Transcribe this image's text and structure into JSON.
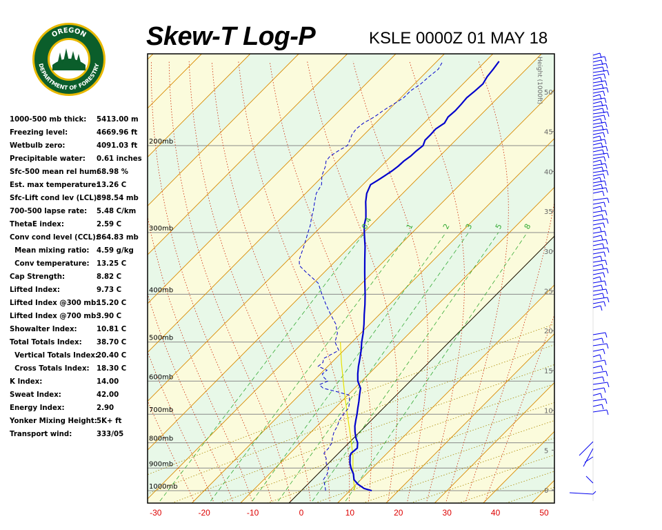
{
  "header": {
    "title": "Skew-T Log-P",
    "station": "KSLE 0000Z 01 MAY 18",
    "logo_text_top": "OREGON",
    "logo_text_bottom": "DEPARTMENT OF FORESTRY"
  },
  "stats": [
    {
      "label": "1000-500 mb thick:",
      "value": "5413.00 m"
    },
    {
      "label": "Freezing level:",
      "value": "4669.96 ft"
    },
    {
      "label": "Wetbulb zero:",
      "value": "4091.03 ft"
    },
    {
      "label": "Precipitable water:",
      "value": "0.61 inches"
    },
    {
      "label": "Sfc-500 mean rel hum:",
      "value": "68.98 %"
    },
    {
      "label": "Est. max temperature:",
      "value": "13.26 C"
    },
    {
      "label": "Sfc-Lift cond lev (LCL):",
      "value": "898.54 mb"
    },
    {
      "label": "700-500 lapse rate:",
      "value": "5.48 C/km"
    },
    {
      "label": "ThetaE index:",
      "value": "2.59 C"
    },
    {
      "label": "Conv cond level (CCL):",
      "value": "864.83 mb"
    },
    {
      "label": "  Mean mixing ratio:",
      "value": "4.59 g/kg"
    },
    {
      "label": "  Conv temperature:",
      "value": "13.25 C"
    },
    {
      "label": "Cap Strength:",
      "value": "8.82 C"
    },
    {
      "label": "Lifted Index:",
      "value": "9.73 C"
    },
    {
      "label": "Lifted Index @300 mb:",
      "value": "15.20 C"
    },
    {
      "label": "Lifted Index @700 mb:",
      "value": "3.90 C"
    },
    {
      "label": "Showalter Index:",
      "value": "10.81 C"
    },
    {
      "label": "Total Totals Index:",
      "value": "38.70 C"
    },
    {
      "label": "  Vertical Totals Index:",
      "value": "20.40 C"
    },
    {
      "label": "  Cross Totals Index:",
      "value": "18.30 C"
    },
    {
      "label": "K Index:",
      "value": "14.00"
    },
    {
      "label": "Sweat Index:",
      "value": "42.00"
    },
    {
      "label": "Energy Index:",
      "value": "2.90"
    },
    {
      "label": "Yonker Mixing Height:",
      "value": "5K+ ft"
    },
    {
      "label": "Transport wind:",
      "value": "333/05"
    }
  ],
  "chart_data": {
    "type": "skew-t",
    "xlabel": "",
    "ylabel": "",
    "x_ticks": [
      -30,
      -20,
      -10,
      0,
      10,
      20,
      30,
      40,
      50
    ],
    "pressure_levels": [
      {
        "p": 200,
        "label": "200mb"
      },
      {
        "p": 300,
        "label": "300mb"
      },
      {
        "p": 400,
        "label": "400mb"
      },
      {
        "p": 500,
        "label": "500mb"
      },
      {
        "p": 600,
        "label": "600mb"
      },
      {
        "p": 700,
        "label": "700mb"
      },
      {
        "p": 800,
        "label": "800mb"
      },
      {
        "p": 900,
        "label": "900mb"
      },
      {
        "p": 1000,
        "label": "1000mb"
      }
    ],
    "height_axis": {
      "title": "Height (1000ft)",
      "ticks": [
        0,
        5,
        10,
        15,
        20,
        25,
        30,
        35,
        40,
        45,
        50
      ]
    },
    "mixing_ratio_labels": [
      "0.4",
      "1",
      "2",
      "3",
      "5",
      "8"
    ],
    "mixing_ratios": [
      0.4,
      1,
      2,
      3,
      5,
      8
    ],
    "temperature_profile": [
      [
        1000,
        14.5
      ],
      [
        990,
        12.5
      ],
      [
        970,
        10.3
      ],
      [
        950,
        8.6
      ],
      [
        925,
        7.3
      ],
      [
        900,
        5.6
      ],
      [
        880,
        4.4
      ],
      [
        860,
        3.4
      ],
      [
        850,
        2.9
      ],
      [
        840,
        2.6
      ],
      [
        830,
        2.7
      ],
      [
        820,
        2.8
      ],
      [
        800,
        1.8
      ],
      [
        780,
        0.3
      ],
      [
        760,
        -1.0
      ],
      [
        740,
        -2.2
      ],
      [
        720,
        -3.2
      ],
      [
        700,
        -4.2
      ],
      [
        680,
        -5.3
      ],
      [
        660,
        -6.4
      ],
      [
        640,
        -7.6
      ],
      [
        620,
        -8.8
      ],
      [
        610,
        -9.8
      ],
      [
        600,
        -10.8
      ],
      [
        580,
        -12.3
      ],
      [
        560,
        -13.7
      ],
      [
        540,
        -15.0
      ],
      [
        520,
        -16.4
      ],
      [
        500,
        -18.0
      ],
      [
        480,
        -19.5
      ],
      [
        460,
        -21.2
      ],
      [
        440,
        -23.1
      ],
      [
        420,
        -25.0
      ],
      [
        400,
        -27.1
      ],
      [
        380,
        -29.4
      ],
      [
        360,
        -31.8
      ],
      [
        340,
        -34.3
      ],
      [
        320,
        -36.9
      ],
      [
        300,
        -39.9
      ],
      [
        290,
        -41.4
      ],
      [
        280,
        -42.6
      ],
      [
        270,
        -44.2
      ],
      [
        260,
        -45.9
      ],
      [
        250,
        -47.4
      ],
      [
        240,
        -48.4
      ],
      [
        235,
        -47.8
      ],
      [
        230,
        -47.3
      ],
      [
        225,
        -46.8
      ],
      [
        220,
        -46.5
      ],
      [
        215,
        -46.4
      ],
      [
        210,
        -46.0
      ],
      [
        205,
        -45.9
      ],
      [
        200,
        -45.6
      ],
      [
        195,
        -46.3
      ],
      [
        190,
        -46.3
      ],
      [
        185,
        -46.4
      ],
      [
        180,
        -45.8
      ],
      [
        175,
        -46.3
      ],
      [
        170,
        -46.1
      ],
      [
        165,
        -46.2
      ],
      [
        160,
        -46.4
      ],
      [
        155,
        -46.1
      ],
      [
        150,
        -45.9
      ],
      [
        145,
        -46.5
      ],
      [
        140,
        -46.8
      ],
      [
        135,
        -47.2
      ]
    ],
    "dewpoint_profile": [
      [
        1000,
        5.0
      ],
      [
        980,
        4.0
      ],
      [
        950,
        2.3
      ],
      [
        925,
        1.9
      ],
      [
        900,
        1.0
      ],
      [
        880,
        -0.5
      ],
      [
        860,
        -1.5
      ],
      [
        850,
        -2.3
      ],
      [
        840,
        -3.0
      ],
      [
        820,
        -3.1
      ],
      [
        800,
        -3.5
      ],
      [
        780,
        -4.5
      ],
      [
        760,
        -5.3
      ],
      [
        740,
        -5.8
      ],
      [
        720,
        -6.6
      ],
      [
        700,
        -7.0
      ],
      [
        680,
        -7.2
      ],
      [
        660,
        -8.3
      ],
      [
        640,
        -9.8
      ],
      [
        630,
        -13.0
      ],
      [
        620,
        -16.5
      ],
      [
        610,
        -18.0
      ],
      [
        600,
        -17.0
      ],
      [
        590,
        -18.5
      ],
      [
        580,
        -19.6
      ],
      [
        570,
        -19.4
      ],
      [
        560,
        -22.0
      ],
      [
        550,
        -21.8
      ],
      [
        540,
        -22.5
      ],
      [
        530,
        -21.8
      ],
      [
        520,
        -21.0
      ],
      [
        500,
        -23.5
      ],
      [
        480,
        -24.8
      ],
      [
        460,
        -27.0
      ],
      [
        440,
        -30.0
      ],
      [
        420,
        -33.0
      ],
      [
        400,
        -36.0
      ],
      [
        380,
        -39.0
      ],
      [
        360,
        -44.0
      ],
      [
        350,
        -46.5
      ],
      [
        340,
        -47.8
      ],
      [
        320,
        -49.5
      ],
      [
        300,
        -51.5
      ],
      [
        290,
        -52.5
      ],
      [
        280,
        -53.8
      ],
      [
        270,
        -55.0
      ],
      [
        260,
        -56.4
      ],
      [
        250,
        -57.8
      ],
      [
        240,
        -58.5
      ],
      [
        230,
        -60.3
      ],
      [
        220,
        -61.5
      ],
      [
        215,
        -62.4
      ],
      [
        210,
        -62.6
      ],
      [
        205,
        -62.0
      ],
      [
        200,
        -61.2
      ],
      [
        195,
        -61.8
      ],
      [
        190,
        -62.5
      ],
      [
        185,
        -62.8
      ],
      [
        180,
        -62.5
      ],
      [
        175,
        -61.5
      ],
      [
        170,
        -61.0
      ],
      [
        165,
        -60.2
      ],
      [
        160,
        -59.4
      ],
      [
        155,
        -59.4
      ],
      [
        150,
        -58.7
      ],
      [
        145,
        -58.5
      ],
      [
        140,
        -58.1
      ],
      [
        135,
        -58.8
      ]
    ],
    "parcel_path": [
      [
        1000,
        11.0
      ],
      [
        950,
        8.5
      ],
      [
        900,
        6.0
      ],
      [
        850,
        3.5
      ],
      [
        800,
        0.5
      ],
      [
        750,
        -2.7
      ],
      [
        700,
        -6.2
      ],
      [
        650,
        -9.9
      ],
      [
        600,
        -13.8
      ],
      [
        550,
        -18.0
      ],
      [
        500,
        -22.4
      ]
    ],
    "isotherm_step": 10,
    "grid": true
  },
  "colors": {
    "band_green": "#e8f8e8",
    "band_yellow": "#fbfbdc",
    "isotherm": "#d98a00",
    "dry_adiabat": "#aa8800",
    "moist_adiabat": "#cc2200",
    "mixing_ratio": "#33aa33",
    "temperature": "#0000cc",
    "dewpoint": "#0000cc",
    "parcel": "#e8e000",
    "pressure_line": "#888888",
    "x_tick": "#dd0000",
    "height_tick": "#666666",
    "wind_barb": "#0000ee",
    "logo_green": "#0b5e2b",
    "logo_gold": "#e8b800"
  }
}
